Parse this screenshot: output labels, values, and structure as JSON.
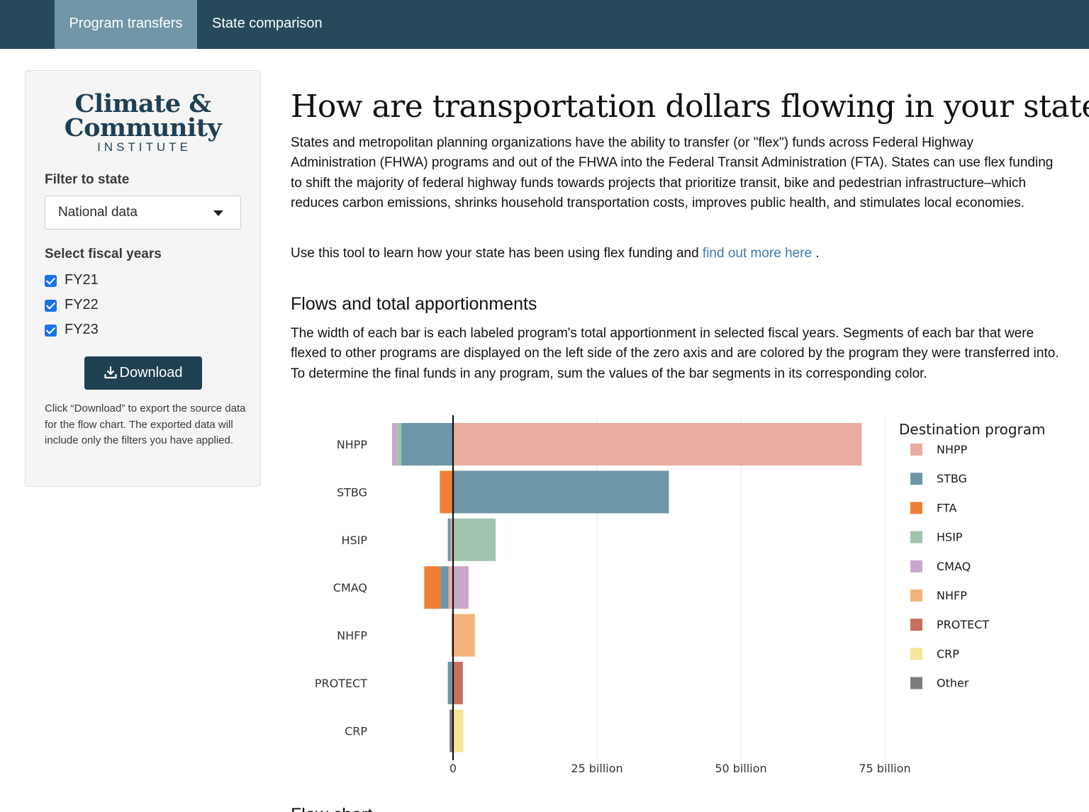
{
  "nav": {
    "tabs": [
      {
        "label": "Program transfers",
        "active": true
      },
      {
        "label": "State comparison",
        "active": false
      }
    ]
  },
  "sidebar": {
    "logo": {
      "line1": "Climate &",
      "line2": "Community",
      "line3": "INSTITUTE"
    },
    "filter_label": "Filter to state",
    "state_select": {
      "value": "National data"
    },
    "years_label": "Select fiscal years",
    "years": [
      {
        "label": "FY21",
        "checked": true
      },
      {
        "label": "FY22",
        "checked": true
      },
      {
        "label": "FY23",
        "checked": true
      }
    ],
    "download_label": "Download",
    "help_text": "Click “Download” to export the source data for the flow chart. The exported data will include only the filters you have applied."
  },
  "main": {
    "title": "How are transportation dollars flowing in your state?",
    "intro": "States and metropolitan planning organizations have the ability to transfer (or \"flex\") funds across Federal Highway Administration (FHWA) programs and out of the FHWA into the Federal Transit Administration (FTA). States can use flex funding to shift the majority of federal highway funds towards projects that prioritize transit, bike and pedestrian infrastructure–which reduces carbon emissions, shrinks household transportation costs, improves public health, and stimulates local economies.",
    "tool_text": "Use this tool to learn how your state has been using flex funding and",
    "tool_link": "find out more here",
    "tool_end": ".",
    "section_title": "Flows and total apportionments",
    "section_desc": "The width of each bar is each labeled program's total apportionment in selected fiscal years. Segments of each bar that were flexed to other programs are displayed on the left side of the zero axis and are colored by the program they were transferred into. To determine the final funds in any program, sum the values of the bar segments in its corresponding color.",
    "next_heading": "Flow chart"
  },
  "colors": {
    "NHPP": "#eaaca1",
    "STBG": "#6d96a6",
    "FTA": "#ee8035",
    "HSIP": "#a1c4ae",
    "CMAQ": "#c9a6cc",
    "NHFP": "#f0b47a",
    "PROTECT": "#c86f5e",
    "CRP": "#f5e59a",
    "Other": "#7d7d7d"
  },
  "chart_data": {
    "type": "bar",
    "orientation": "horizontal",
    "stacked": true,
    "categories": [
      "NHPP",
      "STBG",
      "HSIP",
      "CMAQ",
      "NHFP",
      "PROTECT",
      "CRP"
    ],
    "xlim": [
      -11,
      80
    ],
    "x_unit": "billion",
    "x_ticks": [
      {
        "value": 0,
        "label": "0"
      },
      {
        "value": 25,
        "label": "25 billion"
      },
      {
        "value": 50,
        "label": "50 billion"
      },
      {
        "value": 75,
        "label": "75 billion"
      }
    ],
    "grid": "vertical",
    "legend_title": "Destination program",
    "legend_position": "right",
    "legend_items": [
      "NHPP",
      "STBG",
      "FTA",
      "HSIP",
      "CMAQ",
      "NHFP",
      "PROTECT",
      "CRP",
      "Other"
    ],
    "bars": [
      {
        "category": "NHPP",
        "segments": [
          {
            "program": "STBG",
            "value": -9.0
          },
          {
            "program": "HSIP",
            "value": -0.8
          },
          {
            "program": "CMAQ",
            "value": -0.8
          },
          {
            "program": "NHPP",
            "value": 71.0
          }
        ]
      },
      {
        "category": "STBG",
        "segments": [
          {
            "program": "FTA",
            "value": -2.3
          },
          {
            "program": "STBG",
            "value": 37.5
          }
        ]
      },
      {
        "category": "HSIP",
        "segments": [
          {
            "program": "NHPP",
            "value": -0.4
          },
          {
            "program": "STBG",
            "value": -0.5
          },
          {
            "program": "HSIP",
            "value": 7.4
          }
        ]
      },
      {
        "category": "CMAQ",
        "segments": [
          {
            "program": "NHPP",
            "value": -0.8
          },
          {
            "program": "STBG",
            "value": -1.4
          },
          {
            "program": "FTA",
            "value": -2.8
          },
          {
            "program": "CMAQ",
            "value": 2.7
          }
        ]
      },
      {
        "category": "NHFP",
        "segments": [
          {
            "program": "NHPP",
            "value": -0.3
          },
          {
            "program": "NHFP",
            "value": 3.8
          }
        ]
      },
      {
        "category": "PROTECT",
        "segments": [
          {
            "program": "NHPP",
            "value": -0.2
          },
          {
            "program": "STBG",
            "value": -0.7
          },
          {
            "program": "PROTECT",
            "value": 1.7
          }
        ]
      },
      {
        "category": "CRP",
        "segments": [
          {
            "program": "Other",
            "value": -0.6
          },
          {
            "program": "CRP",
            "value": 1.8
          }
        ]
      }
    ]
  }
}
